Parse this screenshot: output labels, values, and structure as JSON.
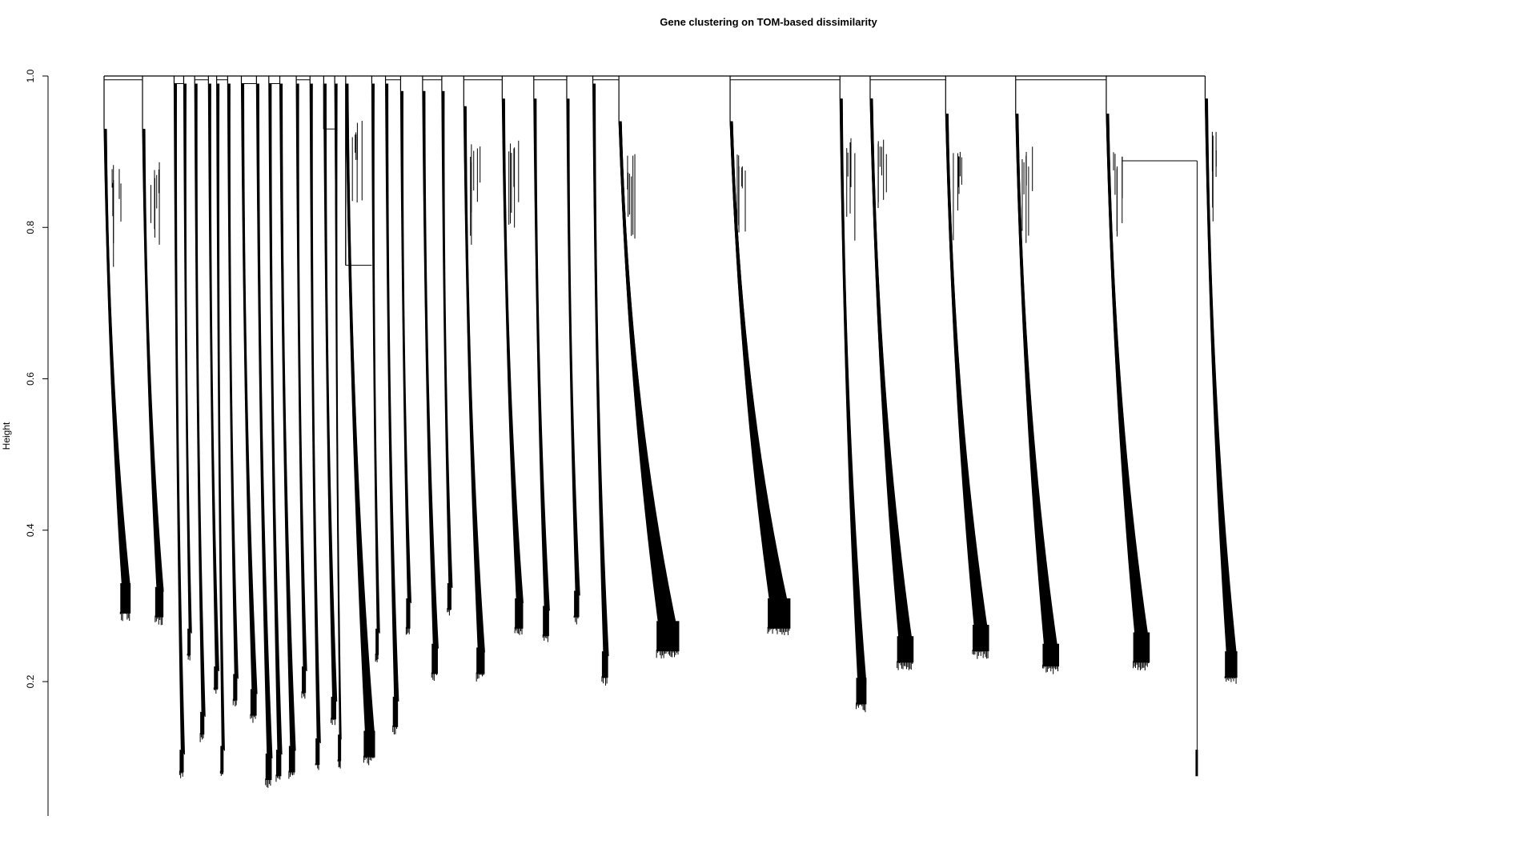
{
  "chart_data": {
    "type": "dendrogram",
    "title": "Gene clustering on TOM-based dissimilarity",
    "xlabel": "",
    "ylabel": "Height",
    "ylim": [
      0.03,
      1.0
    ],
    "yticks": [
      0.2,
      0.4,
      0.6,
      0.8,
      1.0
    ],
    "ytick_labels": [
      "0.2",
      "0.4",
      "0.6",
      "0.8",
      "1.0"
    ],
    "grid": false,
    "line_color": "#000000",
    "clusters": [
      {
        "x": 0.0,
        "top": 0.995,
        "steep": 0.93,
        "end": 0.33,
        "floor": 0.29,
        "w": 0.01
      },
      {
        "x": 0.028,
        "top": 0.995,
        "steep": 0.93,
        "end": 0.325,
        "floor": 0.285,
        "w": 0.008
      },
      {
        "x": 0.051,
        "top": 0.995,
        "steep": 0.99,
        "end": 0.11,
        "floor": 0.08,
        "w": 0.004
      },
      {
        "x": 0.058,
        "top": 0.99,
        "steep": 0.99,
        "end": 0.27,
        "floor": 0.235,
        "w": 0.003
      },
      {
        "x": 0.066,
        "top": 0.995,
        "steep": 0.99,
        "end": 0.16,
        "floor": 0.13,
        "w": 0.004
      },
      {
        "x": 0.076,
        "top": 0.995,
        "steep": 0.99,
        "end": 0.22,
        "floor": 0.19,
        "w": 0.004
      },
      {
        "x": 0.082,
        "top": 0.995,
        "steep": 0.99,
        "end": 0.115,
        "floor": 0.08,
        "w": 0.003
      },
      {
        "x": 0.09,
        "top": 0.995,
        "steep": 0.99,
        "end": 0.21,
        "floor": 0.175,
        "w": 0.004
      },
      {
        "x": 0.1,
        "top": 0.99,
        "steep": 0.99,
        "end": 0.19,
        "floor": 0.155,
        "w": 0.006
      },
      {
        "x": 0.111,
        "top": 0.99,
        "steep": 0.99,
        "end": 0.105,
        "floor": 0.07,
        "w": 0.006
      },
      {
        "x": 0.12,
        "top": 0.99,
        "steep": 0.99,
        "end": 0.11,
        "floor": 0.075,
        "w": 0.005
      },
      {
        "x": 0.128,
        "top": 0.995,
        "steep": 0.99,
        "end": 0.115,
        "floor": 0.08,
        "w": 0.006
      },
      {
        "x": 0.14,
        "top": 0.995,
        "steep": 0.99,
        "end": 0.22,
        "floor": 0.185,
        "w": 0.004
      },
      {
        "x": 0.15,
        "top": 0.995,
        "steep": 0.99,
        "end": 0.125,
        "floor": 0.09,
        "w": 0.004
      },
      {
        "x": 0.16,
        "top": 0.93,
        "steep": 0.99,
        "end": 0.18,
        "floor": 0.15,
        "w": 0.005
      },
      {
        "x": 0.168,
        "top": 0.995,
        "steep": 0.99,
        "end": 0.13,
        "floor": 0.095,
        "w": 0.002
      },
      {
        "x": 0.176,
        "top": 0.75,
        "steep": 0.99,
        "end": 0.135,
        "floor": 0.1,
        "w": 0.011
      },
      {
        "x": 0.195,
        "top": 0.995,
        "steep": 0.99,
        "end": 0.27,
        "floor": 0.235,
        "w": 0.003
      },
      {
        "x": 0.205,
        "top": 0.995,
        "steep": 0.99,
        "end": 0.18,
        "floor": 0.14,
        "w": 0.005
      },
      {
        "x": 0.216,
        "top": 0.995,
        "steep": 0.98,
        "end": 0.31,
        "floor": 0.27,
        "w": 0.004
      },
      {
        "x": 0.232,
        "top": 0.995,
        "steep": 0.98,
        "end": 0.25,
        "floor": 0.21,
        "w": 0.006
      },
      {
        "x": 0.246,
        "top": 0.995,
        "steep": 0.98,
        "end": 0.33,
        "floor": 0.295,
        "w": 0.004
      },
      {
        "x": 0.262,
        "top": 0.995,
        "steep": 0.96,
        "end": 0.245,
        "floor": 0.21,
        "w": 0.008
      },
      {
        "x": 0.29,
        "top": 0.995,
        "steep": 0.97,
        "end": 0.31,
        "floor": 0.27,
        "w": 0.008
      },
      {
        "x": 0.313,
        "top": 0.995,
        "steep": 0.97,
        "end": 0.3,
        "floor": 0.26,
        "w": 0.006
      },
      {
        "x": 0.337,
        "top": 0.995,
        "steep": 0.97,
        "end": 0.32,
        "floor": 0.285,
        "w": 0.005
      },
      {
        "x": 0.356,
        "top": 0.995,
        "steep": 0.99,
        "end": 0.24,
        "floor": 0.205,
        "w": 0.006
      },
      {
        "x": 0.375,
        "top": 0.995,
        "steep": 0.94,
        "end": 0.28,
        "floor": 0.24,
        "w": 0.022
      },
      {
        "x": 0.456,
        "top": 0.995,
        "steep": 0.94,
        "end": 0.31,
        "floor": 0.27,
        "w": 0.022
      },
      {
        "x": 0.536,
        "top": 0.995,
        "steep": 0.97,
        "end": 0.205,
        "floor": 0.17,
        "w": 0.01
      },
      {
        "x": 0.558,
        "top": 0.995,
        "steep": 0.97,
        "end": 0.26,
        "floor": 0.225,
        "w": 0.016
      },
      {
        "x": 0.613,
        "top": 0.995,
        "steep": 0.95,
        "end": 0.275,
        "floor": 0.24,
        "w": 0.016
      },
      {
        "x": 0.664,
        "top": 0.995,
        "steep": 0.95,
        "end": 0.25,
        "floor": 0.22,
        "w": 0.016
      },
      {
        "x": 0.73,
        "top": 0.995,
        "steep": 0.95,
        "end": 0.265,
        "floor": 0.225,
        "w": 0.016
      },
      {
        "x": 0.802,
        "top": 0.995,
        "steep": 0.97,
        "end": 0.24,
        "floor": 0.205,
        "w": 0.012
      }
    ]
  }
}
